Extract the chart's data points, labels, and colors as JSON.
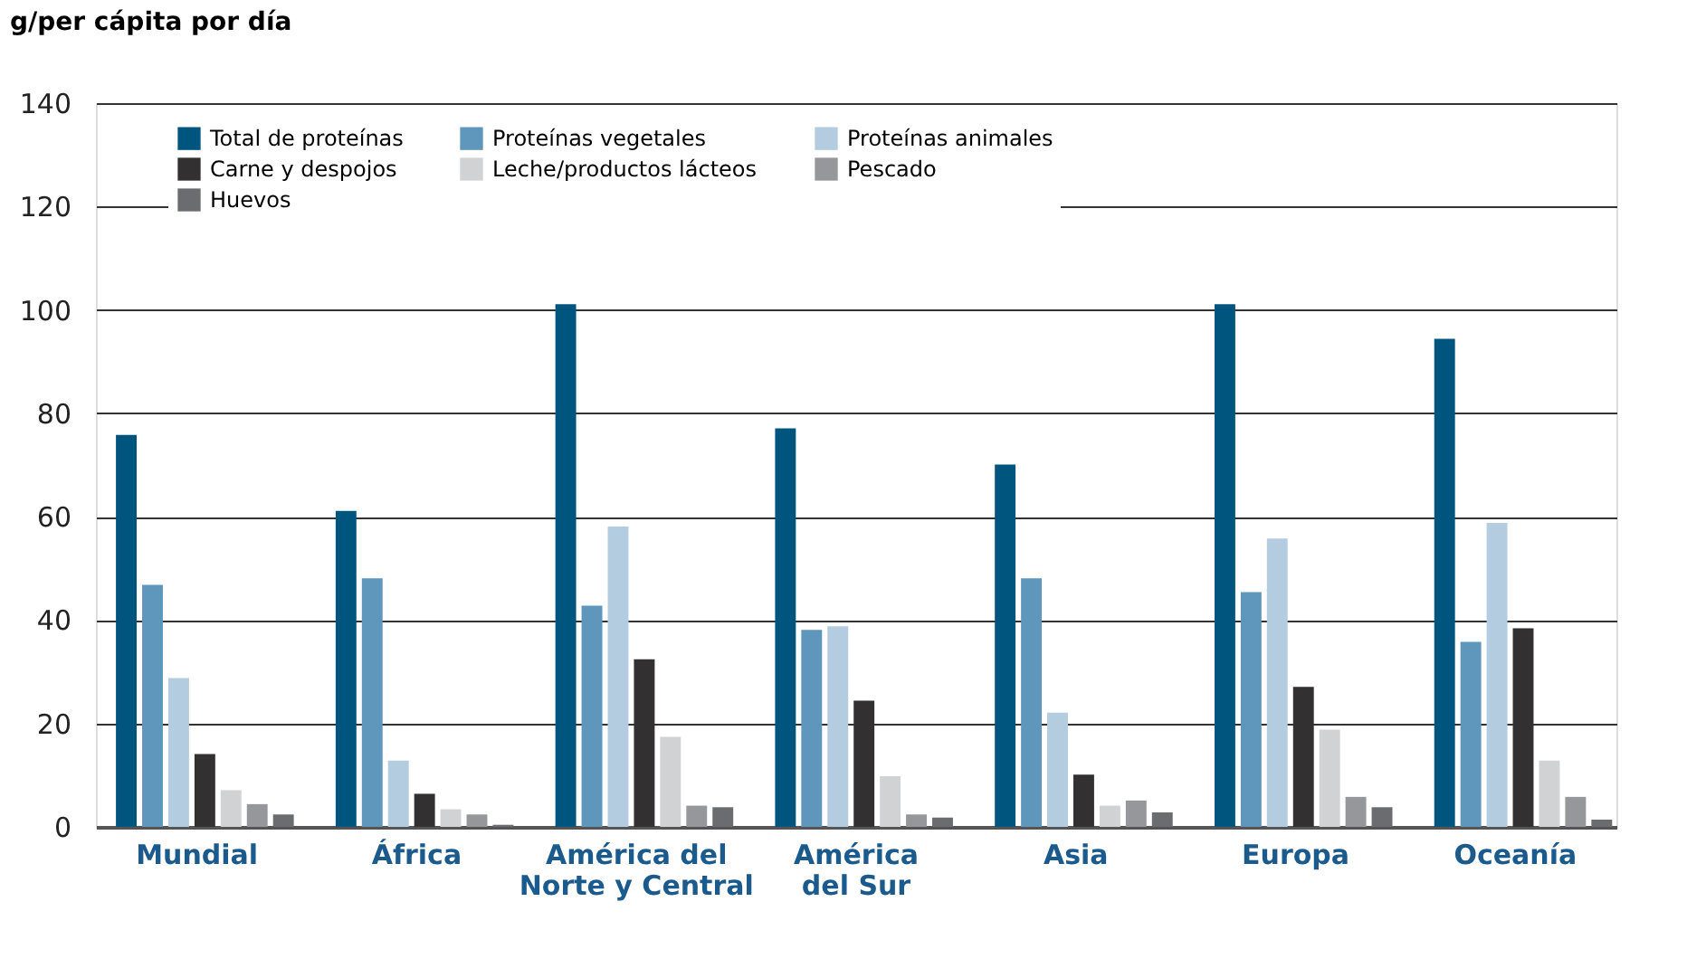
{
  "chart_data": {
    "type": "bar",
    "ylabel": "g/per cápita por día",
    "categories": [
      "Mundial",
      "África",
      "América del Norte y Central",
      "América del Sur",
      "Asia",
      "Europa",
      "Oceanía"
    ],
    "series": [
      {
        "name": "Total de proteínas",
        "color": "#00557f",
        "values": [
          75.8,
          61.1,
          101.1,
          77.1,
          70.1,
          101.1,
          94.4
        ]
      },
      {
        "name": "Proteínas vegetales",
        "color": "#5e97bb",
        "values": [
          46.8,
          48.1,
          42.8,
          38.1,
          48.1,
          45.4,
          35.8
        ]
      },
      {
        "name": "Proteínas animales",
        "color": "#b4cce0",
        "values": [
          28.8,
          12.8,
          58.1,
          38.8,
          22.1,
          55.8,
          58.8
        ]
      },
      {
        "name": "Carne y despojos",
        "color": "#323031",
        "values": [
          14.1,
          6.4,
          32.4,
          24.4,
          10.1,
          27.1,
          38.4
        ]
      },
      {
        "name": "Leche/productos lácteos",
        "color": "#d1d2d4",
        "values": [
          7.1,
          3.4,
          17.4,
          9.8,
          4.1,
          18.8,
          12.8
        ]
      },
      {
        "name": "Pescado",
        "color": "#96979a",
        "values": [
          4.4,
          2.4,
          4.1,
          2.4,
          5.1,
          5.8,
          5.8
        ]
      },
      {
        "name": "Huevos",
        "color": "#6b6c70",
        "values": [
          2.4,
          0.4,
          3.8,
          1.8,
          2.8,
          3.8,
          1.4
        ]
      }
    ],
    "ylim": [
      0,
      140
    ],
    "yticks": [
      0,
      20,
      40,
      60,
      80,
      100,
      120,
      140
    ],
    "grid": "y",
    "legend": "top"
  }
}
